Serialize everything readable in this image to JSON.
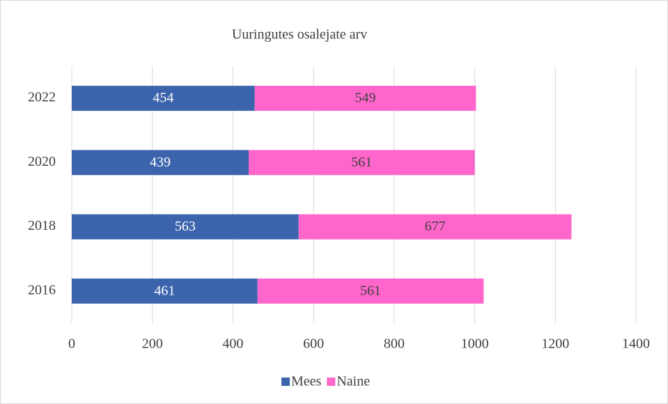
{
  "chart_data": {
    "type": "stacked-barh",
    "title": "Uuringutes osalejate arv",
    "categories": [
      "2022",
      "2020",
      "2018",
      "2016"
    ],
    "series": [
      {
        "name": "Mees",
        "color": "#3b64ad",
        "values": [
          454,
          439,
          563,
          461
        ]
      },
      {
        "name": "Naine",
        "color": "#ff66cc",
        "values": [
          549,
          561,
          677,
          561
        ]
      }
    ],
    "xlim": [
      0,
      1400
    ],
    "xticks": [
      0,
      200,
      400,
      600,
      800,
      1000,
      1200,
      1400
    ],
    "grid": true,
    "legend": "bottom"
  }
}
